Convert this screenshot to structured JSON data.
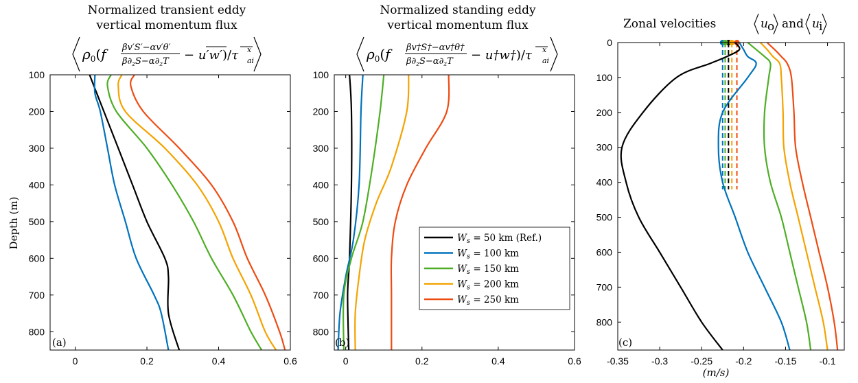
{
  "chart_data": [
    {
      "type": "line",
      "panel": "(a)",
      "title": [
        "Normalized transient eddy",
        "vertical momentum flux"
      ],
      "formula": "⟨ρ₀(f (βv'S' − αv'θ')/(β∂zS − α∂zT) − u'w')/τ^x_ai⟩",
      "ylabel": "Depth (m)",
      "xlabel": "",
      "xlim": [
        -0.07,
        0.6
      ],
      "ylim": [
        100,
        850
      ],
      "y_reversed": true,
      "xticks": [
        0,
        0.2,
        0.4,
        0.6
      ],
      "xtick_labels": [
        "0",
        "0.2",
        "0.4",
        "0.6"
      ],
      "yticks": [
        100,
        200,
        300,
        400,
        500,
        600,
        700,
        800
      ],
      "ytick_labels": [
        "100",
        "200",
        "300",
        "400",
        "500",
        "600",
        "700",
        "800"
      ],
      "series": [
        {
          "name": "Ws = 50 km (Ref.)",
          "color": "#000000",
          "points": [
            [
              0.04,
              100
            ],
            [
              0.06,
              150
            ],
            [
              0.08,
              200
            ],
            [
              0.12,
              300
            ],
            [
              0.16,
              400
            ],
            [
              0.2,
              500
            ],
            [
              0.25,
              600
            ],
            [
              0.26,
              650
            ],
            [
              0.26,
              750
            ],
            [
              0.29,
              850
            ]
          ]
        },
        {
          "name": "Ws = 100 km",
          "color": "#0072BD",
          "points": [
            [
              0.055,
              100
            ],
            [
              0.055,
              150
            ],
            [
              0.07,
              200
            ],
            [
              0.09,
              300
            ],
            [
              0.11,
              400
            ],
            [
              0.14,
              500
            ],
            [
              0.17,
              600
            ],
            [
              0.22,
              700
            ],
            [
              0.24,
              750
            ],
            [
              0.26,
              850
            ]
          ]
        },
        {
          "name": "Ws = 150 km",
          "color": "#4DAE25",
          "points": [
            [
              0.1,
              100
            ],
            [
              0.09,
              130
            ],
            [
              0.115,
              200
            ],
            [
              0.2,
              300
            ],
            [
              0.27,
              400
            ],
            [
              0.33,
              500
            ],
            [
              0.38,
              600
            ],
            [
              0.44,
              700
            ],
            [
              0.49,
              800
            ],
            [
              0.52,
              850
            ]
          ]
        },
        {
          "name": "Ws = 200 km",
          "color": "#F4A300",
          "points": [
            [
              0.13,
              100
            ],
            [
              0.12,
              130
            ],
            [
              0.14,
              200
            ],
            [
              0.25,
              300
            ],
            [
              0.34,
              400
            ],
            [
              0.4,
              500
            ],
            [
              0.44,
              600
            ],
            [
              0.49,
              700
            ],
            [
              0.53,
              800
            ],
            [
              0.56,
              850
            ]
          ]
        },
        {
          "name": "Ws = 250 km",
          "color": "#EE4B12",
          "points": [
            [
              0.165,
              100
            ],
            [
              0.155,
              130
            ],
            [
              0.19,
              200
            ],
            [
              0.29,
              300
            ],
            [
              0.38,
              400
            ],
            [
              0.44,
              500
            ],
            [
              0.48,
              600
            ],
            [
              0.53,
              700
            ],
            [
              0.57,
              800
            ],
            [
              0.585,
              850
            ]
          ]
        }
      ]
    },
    {
      "type": "line",
      "panel": "(b)",
      "title": [
        "Normalized standing eddy",
        "vertical momentum flux"
      ],
      "formula": "⟨ρ₀(f (βv†S† − αv†θ†)/(β∂zS − α∂zT) − u†w†)/τ^x_ai⟩",
      "xlabel": "",
      "ylabel": "",
      "xlim": [
        -0.03,
        0.6
      ],
      "ylim": [
        100,
        850
      ],
      "y_reversed": true,
      "xticks": [
        0,
        0.2,
        0.4,
        0.6
      ],
      "xtick_labels": [
        "0",
        "0.2",
        "0.4",
        "0.6"
      ],
      "yticks": [
        100,
        200,
        300,
        400,
        500,
        600,
        700,
        800
      ],
      "ytick_labels": [
        "100",
        "200",
        "300",
        "400",
        "500",
        "600",
        "700",
        "800"
      ],
      "legend": {
        "placement": "lower-right",
        "entries": [
          {
            "label": "Ws = 50 km (Ref.)",
            "color": "#000000"
          },
          {
            "label": "Ws = 100 km",
            "color": "#0072BD"
          },
          {
            "label": "Ws = 150 km",
            "color": "#4DAE25"
          },
          {
            "label": "Ws = 200 km",
            "color": "#F4A300"
          },
          {
            "label": "Ws = 250 km",
            "color": "#EE4B12"
          }
        ]
      },
      "series": [
        {
          "name": "Ws = 50 km (Ref.)",
          "color": "#000000",
          "points": [
            [
              0.01,
              100
            ],
            [
              0.015,
              200
            ],
            [
              0.015,
              400
            ],
            [
              0.01,
              600
            ],
            [
              0.005,
              700
            ],
            [
              0.008,
              850
            ]
          ]
        },
        {
          "name": "Ws = 100 km",
          "color": "#0072BD",
          "points": [
            [
              0.045,
              100
            ],
            [
              0.04,
              200
            ],
            [
              0.035,
              400
            ],
            [
              0.02,
              550
            ],
            [
              0.0,
              650
            ],
            [
              -0.015,
              750
            ],
            [
              -0.02,
              850
            ]
          ]
        },
        {
          "name": "Ws = 150 km",
          "color": "#4DAE25",
          "points": [
            [
              0.1,
              100
            ],
            [
              0.09,
              200
            ],
            [
              0.07,
              350
            ],
            [
              0.045,
              500
            ],
            [
              0.015,
              600
            ],
            [
              -0.005,
              700
            ],
            [
              -0.005,
              850
            ]
          ]
        },
        {
          "name": "Ws = 200 km",
          "color": "#F4A300",
          "points": [
            [
              0.165,
              100
            ],
            [
              0.16,
              200
            ],
            [
              0.12,
              350
            ],
            [
              0.08,
              450
            ],
            [
              0.05,
              550
            ],
            [
              0.035,
              650
            ],
            [
              0.025,
              750
            ],
            [
              0.025,
              850
            ]
          ]
        },
        {
          "name": "Ws = 250 km",
          "color": "#EE4B12",
          "points": [
            [
              0.27,
              100
            ],
            [
              0.265,
              200
            ],
            [
              0.21,
              300
            ],
            [
              0.16,
              400
            ],
            [
              0.13,
              500
            ],
            [
              0.12,
              600
            ],
            [
              0.12,
              700
            ],
            [
              0.12,
              850
            ]
          ]
        }
      ]
    },
    {
      "type": "line",
      "panel": "(c)",
      "title": "Zonal velocities ⟨u_o⟩ and ⟨u_i⟩",
      "xlabel": "(m/s)",
      "ylabel": "",
      "xlim": [
        -0.35,
        -0.08
      ],
      "ylim": [
        0,
        880
      ],
      "y_reversed": true,
      "xticks": [
        -0.35,
        -0.3,
        -0.25,
        -0.2,
        -0.15,
        -0.1
      ],
      "xtick_labels": [
        "-0.35",
        "-0.3",
        "-0.25",
        "-0.2",
        "-0.15",
        "-0.1"
      ],
      "yticks": [
        0,
        100,
        200,
        300,
        400,
        500,
        600,
        700,
        800
      ],
      "ytick_labels": [
        "0",
        "100",
        "200",
        "300",
        "400",
        "500",
        "600",
        "700",
        "800"
      ],
      "series": [
        {
          "name": "Ws = 50 km (Ref.)",
          "color": "#000000",
          "points": [
            [
              -0.21,
              0
            ],
            [
              -0.205,
              20
            ],
            [
              -0.22,
              40
            ],
            [
              -0.24,
              60
            ],
            [
              -0.28,
              100
            ],
            [
              -0.32,
              200
            ],
            [
              -0.345,
              300
            ],
            [
              -0.34,
              400
            ],
            [
              -0.325,
              500
            ],
            [
              -0.3,
              600
            ],
            [
              -0.275,
              700
            ],
            [
              -0.25,
              800
            ],
            [
              -0.225,
              880
            ]
          ],
          "ice_velocity": -0.218
        },
        {
          "name": "Ws = 100 km",
          "color": "#0072BD",
          "points": [
            [
              -0.205,
              0
            ],
            [
              -0.2,
              20
            ],
            [
              -0.195,
              40
            ],
            [
              -0.185,
              60
            ],
            [
              -0.195,
              100
            ],
            [
              -0.225,
              200
            ],
            [
              -0.23,
              300
            ],
            [
              -0.225,
              400
            ],
            [
              -0.21,
              500
            ],
            [
              -0.195,
              600
            ],
            [
              -0.175,
              700
            ],
            [
              -0.155,
              800
            ],
            [
              -0.145,
              880
            ]
          ],
          "ice_velocity": -0.225
        },
        {
          "name": "Ws = 150 km",
          "color": "#4DAE25",
          "points": [
            [
              -0.195,
              0
            ],
            [
              -0.185,
              20
            ],
            [
              -0.175,
              40
            ],
            [
              -0.168,
              60
            ],
            [
              -0.17,
              100
            ],
            [
              -0.175,
              200
            ],
            [
              -0.175,
              300
            ],
            [
              -0.168,
              400
            ],
            [
              -0.155,
              500
            ],
            [
              -0.145,
              600
            ],
            [
              -0.135,
              700
            ],
            [
              -0.125,
              800
            ],
            [
              -0.12,
              880
            ]
          ],
          "ice_velocity": -0.222
        },
        {
          "name": "Ws = 200 km",
          "color": "#F4A300",
          "points": [
            [
              -0.18,
              0
            ],
            [
              -0.172,
              20
            ],
            [
              -0.165,
              40
            ],
            [
              -0.157,
              60
            ],
            [
              -0.155,
              100
            ],
            [
              -0.153,
              200
            ],
            [
              -0.152,
              300
            ],
            [
              -0.145,
              400
            ],
            [
              -0.135,
              500
            ],
            [
              -0.125,
              600
            ],
            [
              -0.115,
              700
            ],
            [
              -0.105,
              800
            ],
            [
              -0.1,
              880
            ]
          ],
          "ice_velocity": -0.214
        },
        {
          "name": "Ws = 250 km",
          "color": "#EE4B12",
          "points": [
            [
              -0.172,
              0
            ],
            [
              -0.163,
              20
            ],
            [
              -0.155,
              40
            ],
            [
              -0.148,
              60
            ],
            [
              -0.143,
              100
            ],
            [
              -0.14,
              200
            ],
            [
              -0.138,
              300
            ],
            [
              -0.13,
              400
            ],
            [
              -0.12,
              500
            ],
            [
              -0.11,
              600
            ],
            [
              -0.1,
              700
            ],
            [
              -0.092,
              800
            ],
            [
              -0.088,
              880
            ]
          ],
          "ice_velocity": -0.208
        }
      ]
    }
  ],
  "panel_c_title_parts": {
    "prefix": "Zonal velocities",
    "u": "u",
    "o": "o",
    "and": "and",
    "i": "i"
  },
  "legend_parts": {
    "W": "W",
    "s": "s",
    "eq": "= ",
    "rows": [
      "50 km (Ref.)",
      "100 km",
      "150 km",
      "200 km",
      "250 km"
    ]
  }
}
